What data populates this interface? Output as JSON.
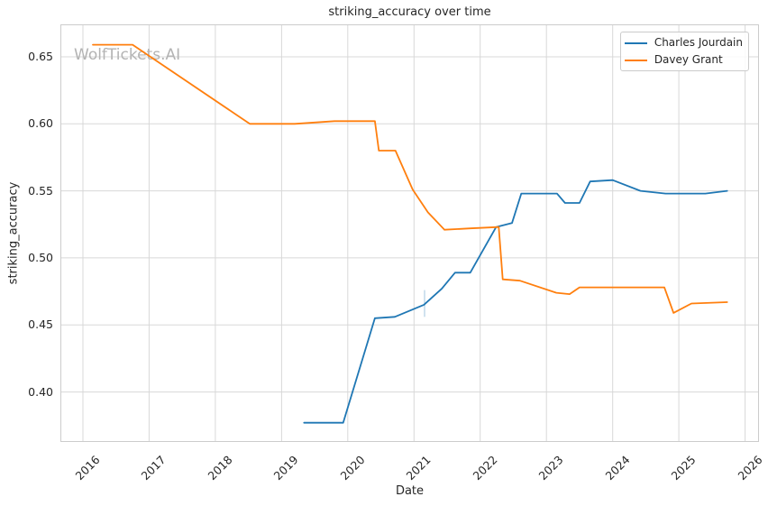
{
  "watermark": "WolfTickets.AI",
  "colors": {
    "grid": "#d8d8d8",
    "spine": "#cccccc",
    "text": "#262626",
    "watermark": "#b3b3b3",
    "series_blue": "#1f77b4",
    "series_orange": "#ff7f0e"
  },
  "chart_data": {
    "type": "line",
    "title": "striking_accuracy over time",
    "xlabel": "Date",
    "ylabel": "striking_accuracy",
    "grid": true,
    "legend_position": "upper right",
    "xlim": [
      2015.66,
      2026.21
    ],
    "ylim": [
      0.3627,
      0.6742
    ],
    "x_ticks": [
      {
        "value": 2016,
        "label": "2016"
      },
      {
        "value": 2017,
        "label": "2017"
      },
      {
        "value": 2018,
        "label": "2018"
      },
      {
        "value": 2019,
        "label": "2019"
      },
      {
        "value": 2020,
        "label": "2020"
      },
      {
        "value": 2021,
        "label": "2021"
      },
      {
        "value": 2022,
        "label": "2022"
      },
      {
        "value": 2023,
        "label": "2023"
      },
      {
        "value": 2024,
        "label": "2024"
      },
      {
        "value": 2025,
        "label": "2025"
      },
      {
        "value": 2026,
        "label": "2026"
      }
    ],
    "y_ticks": [
      {
        "value": 0.4,
        "label": "0.40"
      },
      {
        "value": 0.45,
        "label": "0.45"
      },
      {
        "value": 0.5,
        "label": "0.50"
      },
      {
        "value": 0.55,
        "label": "0.55"
      },
      {
        "value": 0.6,
        "label": "0.60"
      },
      {
        "value": 0.65,
        "label": "0.65"
      }
    ],
    "series": [
      {
        "name": "Charles Jourdain",
        "color": "#1f77b4",
        "points": [
          [
            2019.34,
            0.377
          ],
          [
            2019.93,
            0.377
          ],
          [
            2020.41,
            0.455
          ],
          [
            2020.71,
            0.456
          ],
          [
            2021.15,
            0.465
          ],
          [
            2021.42,
            0.477
          ],
          [
            2021.62,
            0.489
          ],
          [
            2021.85,
            0.489
          ],
          [
            2022.24,
            0.523
          ],
          [
            2022.48,
            0.526
          ],
          [
            2022.62,
            0.548
          ],
          [
            2023.16,
            0.548
          ],
          [
            2023.28,
            0.541
          ],
          [
            2023.5,
            0.541
          ],
          [
            2023.66,
            0.557
          ],
          [
            2024.0,
            0.558
          ],
          [
            2024.42,
            0.55
          ],
          [
            2024.8,
            0.548
          ],
          [
            2025.4,
            0.548
          ],
          [
            2025.73,
            0.55
          ]
        ]
      },
      {
        "name": "Davey Grant",
        "color": "#ff7f0e",
        "points": [
          [
            2016.15,
            0.659
          ],
          [
            2016.75,
            0.659
          ],
          [
            2018.52,
            0.6
          ],
          [
            2019.2,
            0.6
          ],
          [
            2019.8,
            0.602
          ],
          [
            2020.41,
            0.602
          ],
          [
            2020.47,
            0.58
          ],
          [
            2020.72,
            0.58
          ],
          [
            2020.98,
            0.551
          ],
          [
            2021.21,
            0.534
          ],
          [
            2021.46,
            0.521
          ],
          [
            2021.85,
            0.522
          ],
          [
            2022.28,
            0.523
          ],
          [
            2022.34,
            0.484
          ],
          [
            2022.6,
            0.483
          ],
          [
            2023.15,
            0.474
          ],
          [
            2023.35,
            0.473
          ],
          [
            2023.5,
            0.478
          ],
          [
            2024.78,
            0.478
          ],
          [
            2024.92,
            0.459
          ],
          [
            2025.19,
            0.466
          ],
          [
            2025.73,
            0.467
          ]
        ]
      }
    ],
    "annotations": [
      {
        "type": "errorbar",
        "series": "Charles Jourdain",
        "x": 2021.16,
        "y_low": 0.456,
        "y_high": 0.476,
        "color": "rgba(31,119,180,0.35)"
      }
    ]
  }
}
